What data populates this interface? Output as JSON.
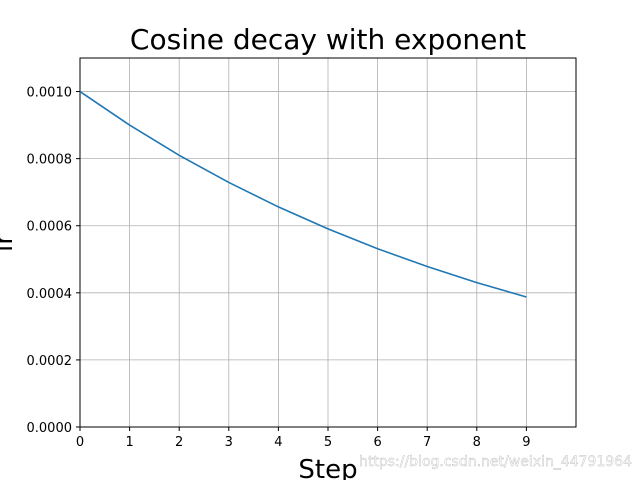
{
  "chart_data": {
    "type": "line",
    "title": "Cosine decay with exponent",
    "xlabel": "Step",
    "ylabel": "lr",
    "x": [
      0,
      1,
      2,
      3,
      4,
      5,
      6,
      7,
      8,
      9
    ],
    "series": [
      {
        "name": "lr",
        "color": "#1f77b4",
        "values": [
          0.001,
          0.0009,
          0.00081,
          0.000729,
          0.0006561,
          0.00059049,
          0.000531441,
          0.0004782969,
          0.00043046721,
          0.000387420489
        ]
      }
    ],
    "xlim": [
      0,
      10
    ],
    "xticks": [
      0,
      1,
      2,
      3,
      4,
      5,
      6,
      7,
      8,
      9
    ],
    "ylim": [
      0,
      0.0011
    ],
    "yticks": [
      {
        "value": 0,
        "label": "0.0000"
      },
      {
        "value": 0.0002,
        "label": "0.0002"
      },
      {
        "value": 0.0004,
        "label": "0.0004"
      },
      {
        "value": 0.0006,
        "label": "0.0006"
      },
      {
        "value": 0.0008,
        "label": "0.0008"
      },
      {
        "value": 0.001,
        "label": "0.0010"
      }
    ],
    "grid": true,
    "watermark": "https://blog.csdn.net/weixin_44791964"
  }
}
